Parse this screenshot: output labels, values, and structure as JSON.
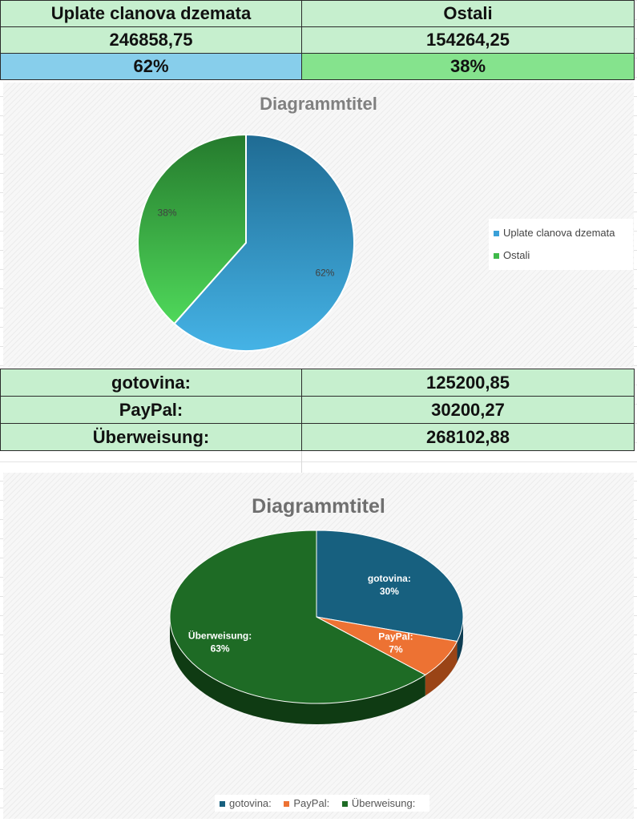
{
  "table_top": {
    "headers": [
      "Uplate clanova dzemata",
      "Ostali"
    ],
    "values": [
      "246858,75",
      "154264,25"
    ],
    "percents": [
      "62%",
      "38%"
    ]
  },
  "table_bottom": {
    "rows": [
      {
        "label": "gotovina:",
        "value": "125200,85"
      },
      {
        "label": "PayPal:",
        "value": "30200,27"
      },
      {
        "label": "Überweisung:",
        "value": "268102,88"
      }
    ]
  },
  "colors": {
    "cell_green": "#c6efce",
    "cell_blue": "#87ceeb",
    "cell_green_dark": "#85e38d",
    "pie1_blue": "#3aa0d8",
    "pie1_green": "#3fb94a",
    "pie2_blue": "#17607f",
    "pie2_orange": "#ed7233",
    "pie2_green": "#1e6b25"
  },
  "chart_data": [
    {
      "type": "pie",
      "title": "Diagrammtitel",
      "categories": [
        "Uplate clanova dzemata",
        "Ostali"
      ],
      "values": [
        246858.75,
        154264.25
      ],
      "data_labels": [
        "62%",
        "38%"
      ],
      "legend": "right"
    },
    {
      "type": "pie",
      "title": "Diagrammtitel",
      "categories": [
        "gotovina:",
        "PayPal:",
        "Überweisung:"
      ],
      "values": [
        125200.85,
        30200.27,
        268102.88
      ],
      "data_labels": [
        "30%",
        "7%",
        "63%"
      ],
      "legend": "bottom"
    }
  ]
}
